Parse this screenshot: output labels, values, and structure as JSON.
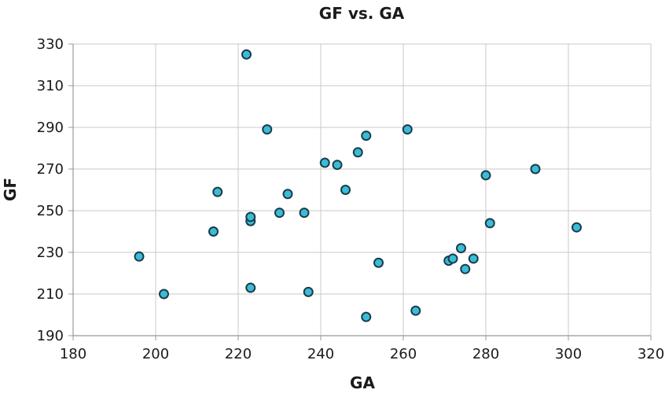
{
  "chart_data": {
    "type": "scatter",
    "title": "GF vs. GA",
    "xlabel": "GA",
    "ylabel": "GF",
    "xlim": [
      180,
      320
    ],
    "ylim": [
      190,
      330
    ],
    "xticks": [
      180,
      200,
      220,
      240,
      260,
      280,
      300,
      320
    ],
    "yticks": [
      190,
      210,
      230,
      250,
      270,
      290,
      310,
      330
    ],
    "grid": true,
    "marker_fill": "#3bbcd6",
    "marker_stroke": "#1a3c4a",
    "points": [
      {
        "x": 196,
        "y": 228
      },
      {
        "x": 202,
        "y": 210
      },
      {
        "x": 214,
        "y": 240
      },
      {
        "x": 215,
        "y": 259
      },
      {
        "x": 222,
        "y": 325
      },
      {
        "x": 223,
        "y": 245
      },
      {
        "x": 223,
        "y": 247
      },
      {
        "x": 223,
        "y": 213
      },
      {
        "x": 227,
        "y": 289
      },
      {
        "x": 230,
        "y": 249
      },
      {
        "x": 232,
        "y": 258
      },
      {
        "x": 236,
        "y": 249
      },
      {
        "x": 237,
        "y": 211
      },
      {
        "x": 241,
        "y": 273
      },
      {
        "x": 244,
        "y": 272
      },
      {
        "x": 246,
        "y": 260
      },
      {
        "x": 249,
        "y": 278
      },
      {
        "x": 251,
        "y": 286
      },
      {
        "x": 251,
        "y": 199
      },
      {
        "x": 254,
        "y": 225
      },
      {
        "x": 261,
        "y": 289
      },
      {
        "x": 263,
        "y": 202
      },
      {
        "x": 271,
        "y": 226
      },
      {
        "x": 272,
        "y": 227
      },
      {
        "x": 274,
        "y": 232
      },
      {
        "x": 275,
        "y": 222
      },
      {
        "x": 277,
        "y": 227
      },
      {
        "x": 280,
        "y": 267
      },
      {
        "x": 281,
        "y": 244
      },
      {
        "x": 292,
        "y": 270
      },
      {
        "x": 302,
        "y": 242
      }
    ]
  }
}
